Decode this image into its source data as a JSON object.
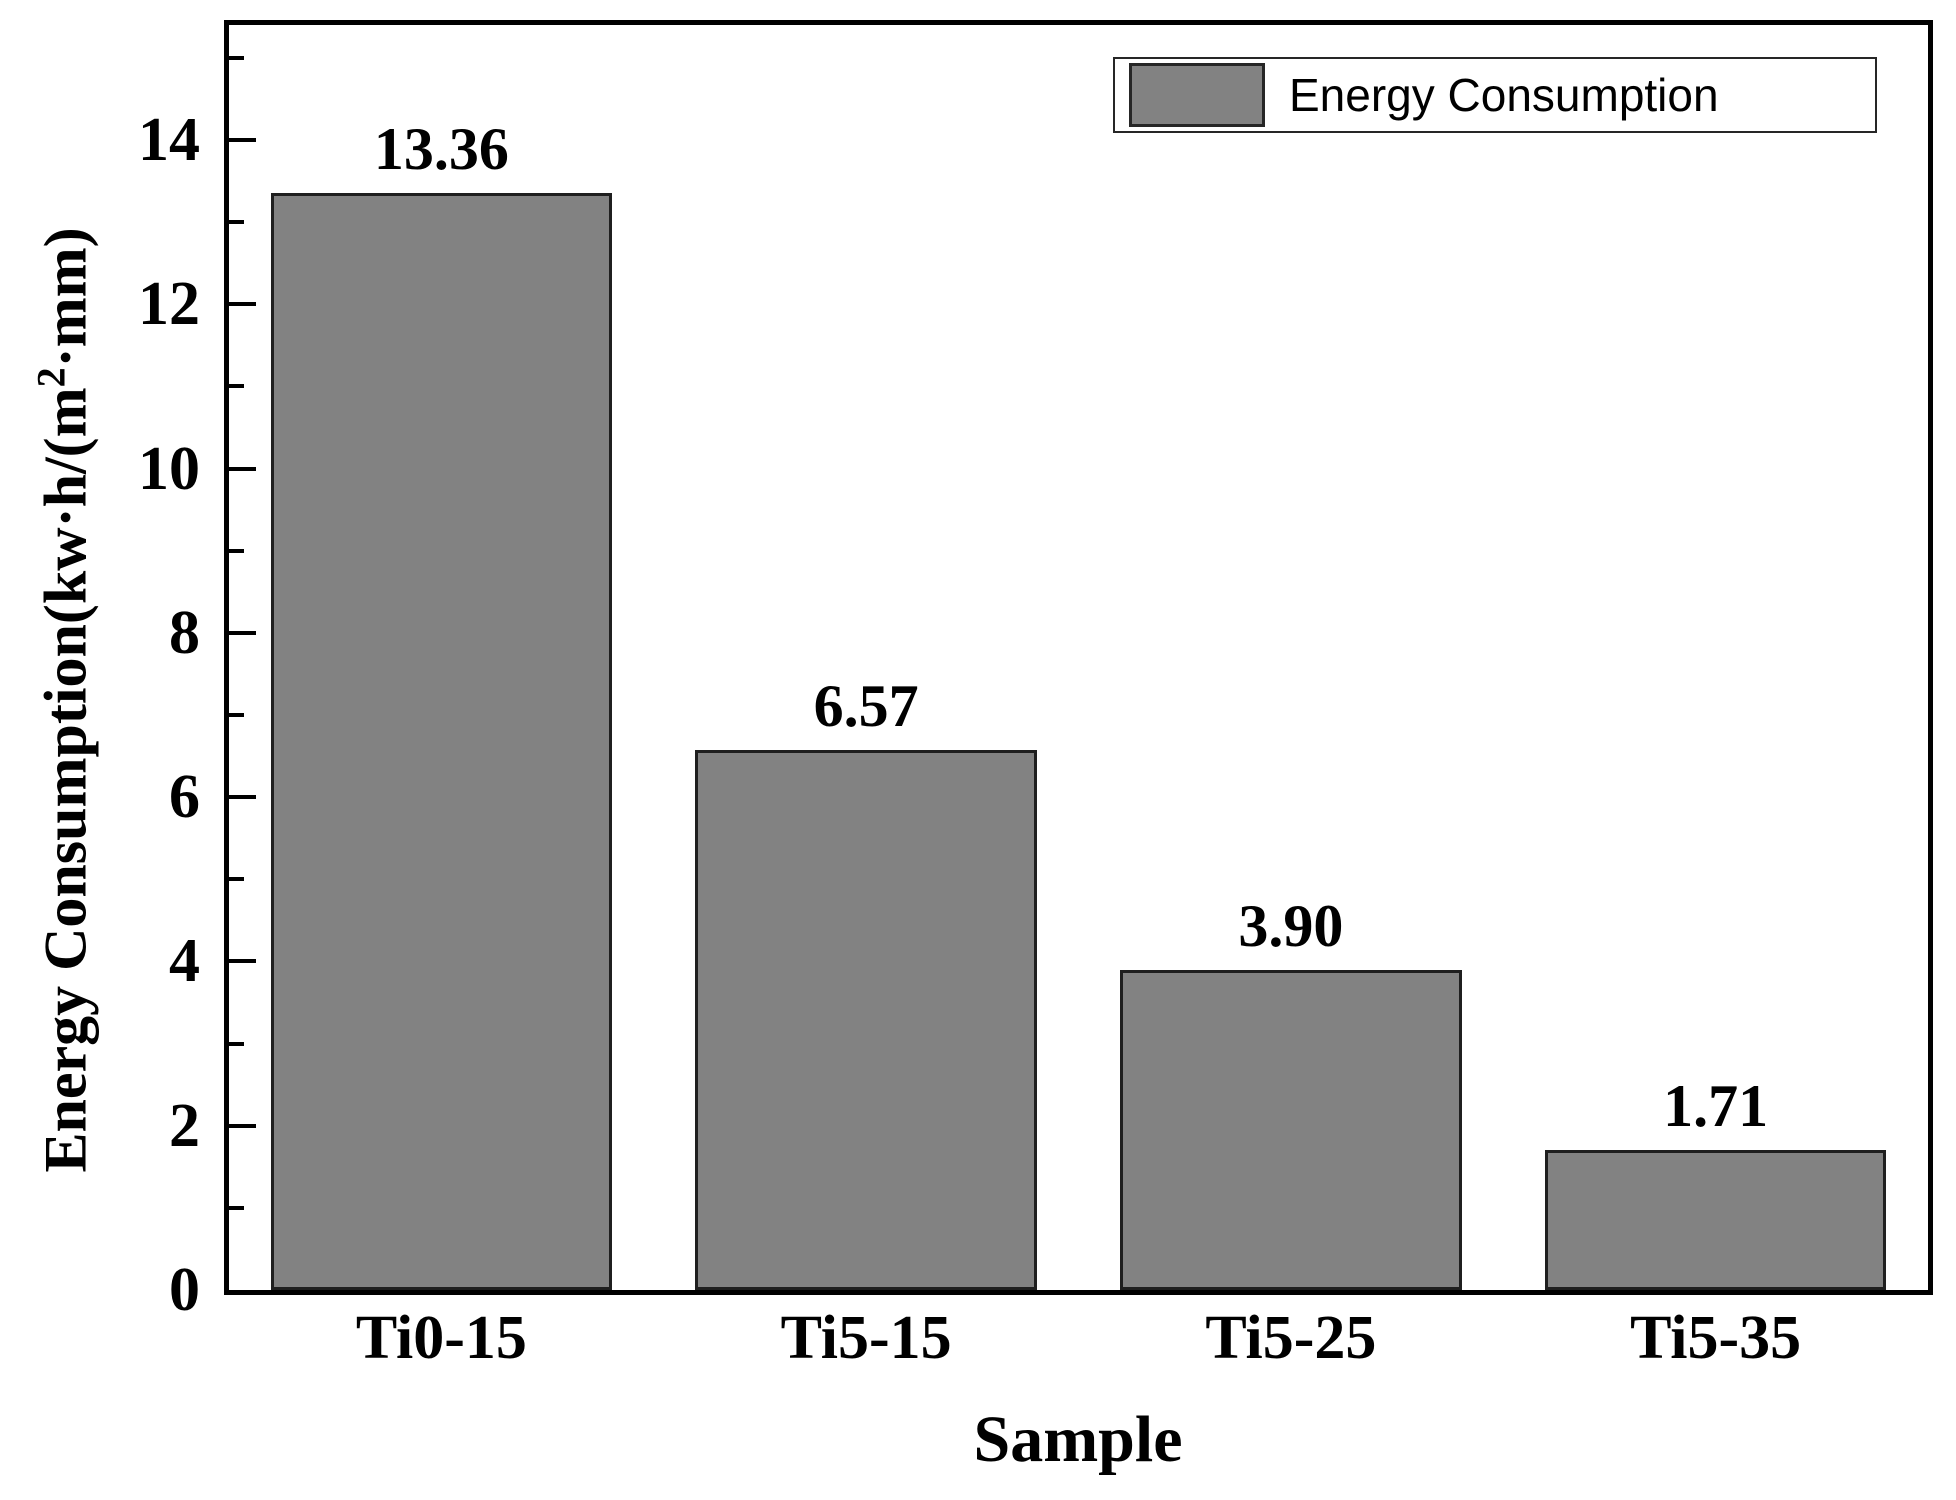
{
  "chart_data": {
    "type": "bar",
    "title": "",
    "categories": [
      "Ti0-15",
      "Ti5-15",
      "Ti5-25",
      "Ti5-35"
    ],
    "values": [
      13.36,
      6.57,
      3.9,
      1.71
    ],
    "bar_labels": [
      "13.36",
      "6.57",
      "3.90",
      "1.71"
    ],
    "xlabel": "Sample",
    "ylabel_prefix": "Energy Consumption(kw·h/(m",
    "ylabel_sup": "2",
    "ylabel_suffix": "·mm)",
    "ylim": [
      0,
      15.4
    ],
    "yticks_major": [
      0,
      2,
      4,
      6,
      8,
      10,
      12,
      14
    ],
    "yticks_minor": [
      1,
      3,
      5,
      7,
      9,
      11,
      13,
      15
    ],
    "legend": {
      "label": "Energy Consumption",
      "position": "top-right"
    },
    "colors": {
      "bar_fill": "#828282",
      "bar_border": "#1f1f1f",
      "axis": "#000000",
      "text": "#000000",
      "background": "#ffffff"
    },
    "grid": false
  }
}
